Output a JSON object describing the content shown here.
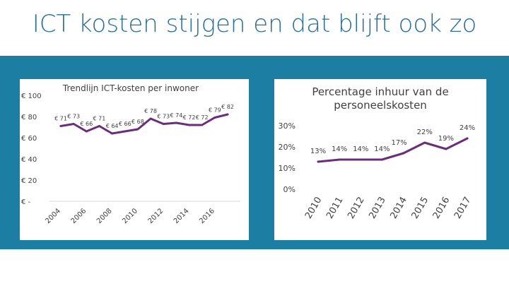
{
  "page": {
    "title": "ICT kosten stijgen en dat blijft ook zo"
  },
  "chart_data": [
    {
      "type": "line",
      "title": "Trendlijn ICT-kosten per inwoner",
      "xlabel": "",
      "ylabel": "",
      "x": [
        2004,
        2005,
        2006,
        2007,
        2008,
        2009,
        2010,
        2011,
        2012,
        2013,
        2014,
        2015,
        2016,
        2017
      ],
      "values": [
        71,
        73,
        66,
        71,
        64,
        66,
        68,
        78,
        73,
        74,
        72,
        72,
        79,
        82
      ],
      "data_labels": [
        "€ 71",
        "€ 73",
        "€ 66",
        "€ 71",
        "€ 64",
        "€ 66",
        "€ 68",
        "€ 78",
        "€ 73",
        "€ 74",
        "€ 72",
        "€ 72",
        "€ 79",
        "€ 82"
      ],
      "ylim": [
        0,
        100
      ],
      "yticks": [
        0,
        20,
        40,
        60,
        80,
        100
      ],
      "ytick_labels": [
        "€ -",
        "€ 20",
        "€ 40",
        "€ 60",
        "€ 80",
        "€ 100"
      ],
      "xtick_values": [
        2004,
        2006,
        2008,
        2010,
        2012,
        2014,
        2016
      ],
      "xtick_labels": [
        "2004",
        "2006",
        "2008",
        "2010",
        "2012",
        "2014",
        "2016"
      ],
      "color": "#6b2d7a"
    },
    {
      "type": "line",
      "title": "Percentage inhuur van de personeelskosten",
      "xlabel": "",
      "ylabel": "",
      "x": [
        2010,
        2011,
        2012,
        2013,
        2014,
        2015,
        2016,
        2017
      ],
      "values": [
        13,
        14,
        14,
        14,
        17,
        22,
        19,
        24
      ],
      "data_labels": [
        "13%",
        "14%",
        "14%",
        "14%",
        "17%",
        "22%",
        "19%",
        "24%"
      ],
      "ylim": [
        0,
        30
      ],
      "yticks": [
        0,
        10,
        20,
        30
      ],
      "ytick_labels": [
        "0%",
        "10%",
        "20%",
        "30%"
      ],
      "xtick_values": [
        2010,
        2011,
        2012,
        2013,
        2014,
        2015,
        2016,
        2017
      ],
      "xtick_labels": [
        "2010",
        "2011",
        "2012",
        "2013",
        "2014",
        "2015",
        "2016",
        "2017"
      ],
      "color": "#6b2d7a"
    }
  ]
}
